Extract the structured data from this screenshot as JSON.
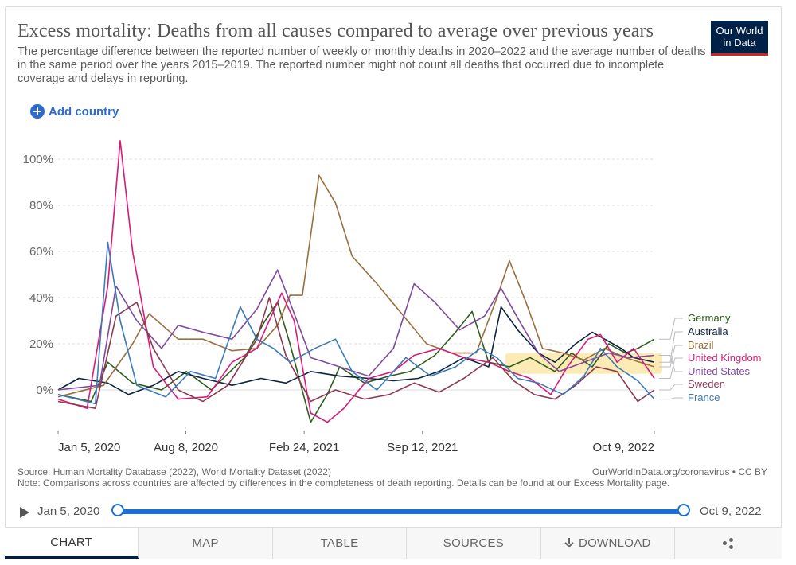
{
  "header": {
    "title": "Excess mortality: Deaths from all causes compared to average over previous years",
    "subtitle": "The percentage difference between the reported number of weekly or monthly deaths in 2020–2022 and the average number of deaths in the same period over the years 2015–2019. The reported number might not count all deaths that occurred due to incomplete coverage and delays in reporting.",
    "logo_line1": "Our World",
    "logo_line2": "in Data",
    "add_country": "Add country"
  },
  "colors": {
    "Germany": "#2f5d1e",
    "Australia": "#0c2340",
    "Brazil": "#9a6f3e",
    "United Kingdom": "#d81b78",
    "United States": "#7e4aa0",
    "Sweden": "#8b3a52",
    "France": "#3d7ab8",
    "highlight": "#fde8a8"
  },
  "chart_data": {
    "type": "line",
    "y_unit": "%",
    "ylim": [
      -15,
      110
    ],
    "y_ticks": [
      "100%",
      "80%",
      "60%",
      "40%",
      "20%",
      "0%"
    ],
    "y_tick_values": [
      100,
      80,
      60,
      40,
      20,
      0
    ],
    "x_ticks": [
      "Jan 5, 2020",
      "Aug 8, 2020",
      "Feb 24, 2021",
      "Sep 12, 2021",
      "Oct 9, 2022"
    ],
    "x_tick_dates": [
      "2020-01-05",
      "2020-08-08",
      "2021-02-24",
      "2021-09-12",
      "2022-10-09"
    ],
    "x_range": [
      "2020-01-05",
      "2022-10-09"
    ],
    "legend_position": "right",
    "grid": "horizontal",
    "series": [
      {
        "name": "Germany",
        "points": [
          [
            "2020-01-05",
            -2
          ],
          [
            "2020-03-01",
            -5
          ],
          [
            "2020-03-29",
            12
          ],
          [
            "2020-05-10",
            3
          ],
          [
            "2020-06-28",
            0
          ],
          [
            "2020-08-09",
            8
          ],
          [
            "2020-09-20",
            0
          ],
          [
            "2020-11-15",
            14
          ],
          [
            "2020-12-20",
            30
          ],
          [
            "2021-01-10",
            38
          ],
          [
            "2021-01-31",
            20
          ],
          [
            "2021-03-07",
            -14
          ],
          [
            "2021-04-04",
            -2
          ],
          [
            "2021-04-25",
            10
          ],
          [
            "2021-06-06",
            3
          ],
          [
            "2021-07-18",
            6
          ],
          [
            "2021-08-22",
            8
          ],
          [
            "2021-10-03",
            15
          ],
          [
            "2021-11-07",
            25
          ],
          [
            "2021-12-05",
            34
          ],
          [
            "2022-01-02",
            12
          ],
          [
            "2022-02-06",
            10
          ],
          [
            "2022-03-13",
            14
          ],
          [
            "2022-04-24",
            8
          ],
          [
            "2022-05-22",
            16
          ],
          [
            "2022-06-26",
            10
          ],
          [
            "2022-07-24",
            20
          ],
          [
            "2022-08-21",
            16
          ],
          [
            "2022-09-11",
            18
          ],
          [
            "2022-10-09",
            22
          ]
        ]
      },
      {
        "name": "Australia",
        "points": [
          [
            "2020-01-05",
            0
          ],
          [
            "2020-02-09",
            5
          ],
          [
            "2020-03-29",
            3
          ],
          [
            "2020-05-03",
            -2
          ],
          [
            "2020-06-14",
            2
          ],
          [
            "2020-07-26",
            8
          ],
          [
            "2020-09-06",
            5
          ],
          [
            "2020-10-25",
            2
          ],
          [
            "2020-12-13",
            5
          ],
          [
            "2021-01-24",
            3
          ],
          [
            "2021-03-07",
            8
          ],
          [
            "2021-04-25",
            6
          ],
          [
            "2021-06-13",
            5
          ],
          [
            "2021-07-25",
            4
          ],
          [
            "2021-09-05",
            5
          ],
          [
            "2021-10-10",
            8
          ],
          [
            "2021-11-21",
            14
          ],
          [
            "2022-01-02",
            10
          ],
          [
            "2022-01-23",
            36
          ],
          [
            "2022-02-20",
            26
          ],
          [
            "2022-03-27",
            16
          ],
          [
            "2022-04-24",
            12
          ],
          [
            "2022-05-29",
            20
          ],
          [
            "2022-06-26",
            25
          ],
          [
            "2022-07-17",
            22
          ],
          [
            "2022-08-14",
            18
          ],
          [
            "2022-09-04",
            14
          ],
          [
            "2022-10-09",
            12
          ]
        ]
      },
      {
        "name": "Brazil",
        "points": [
          [
            "2020-01-05",
            -3
          ],
          [
            "2020-03-22",
            2
          ],
          [
            "2020-05-10",
            20
          ],
          [
            "2020-06-07",
            33
          ],
          [
            "2020-07-26",
            22
          ],
          [
            "2020-09-06",
            22
          ],
          [
            "2020-10-25",
            17
          ],
          [
            "2020-12-06",
            18
          ],
          [
            "2021-01-10",
            28
          ],
          [
            "2021-01-31",
            41
          ],
          [
            "2021-02-21",
            41
          ],
          [
            "2021-03-21",
            93
          ],
          [
            "2021-04-18",
            81
          ],
          [
            "2021-05-16",
            58
          ],
          [
            "2021-06-27",
            46
          ],
          [
            "2021-08-08",
            33
          ],
          [
            "2021-09-19",
            20
          ],
          [
            "2021-10-31",
            16
          ],
          [
            "2021-12-12",
            16
          ],
          [
            "2022-01-16",
            40
          ],
          [
            "2022-02-06",
            56
          ],
          [
            "2022-03-06",
            38
          ],
          [
            "2022-04-03",
            18
          ],
          [
            "2022-05-08",
            16
          ],
          [
            "2022-06-12",
            13
          ],
          [
            "2022-07-17",
            18
          ],
          [
            "2022-08-21",
            14
          ],
          [
            "2022-10-09",
            10
          ]
        ]
      },
      {
        "name": "United Kingdom",
        "points": [
          [
            "2020-01-05",
            -4
          ],
          [
            "2020-02-23",
            -8
          ],
          [
            "2020-03-29",
            45
          ],
          [
            "2020-04-19",
            108
          ],
          [
            "2020-05-10",
            60
          ],
          [
            "2020-06-14",
            10
          ],
          [
            "2020-07-26",
            -4
          ],
          [
            "2020-09-13",
            -3
          ],
          [
            "2020-10-25",
            12
          ],
          [
            "2020-12-06",
            18
          ],
          [
            "2021-01-17",
            42
          ],
          [
            "2021-02-07",
            30
          ],
          [
            "2021-03-07",
            -10
          ],
          [
            "2021-04-04",
            -14
          ],
          [
            "2021-05-02",
            -8
          ],
          [
            "2021-06-13",
            5
          ],
          [
            "2021-07-25",
            8
          ],
          [
            "2021-08-29",
            15
          ],
          [
            "2021-10-10",
            18
          ],
          [
            "2021-11-21",
            14
          ],
          [
            "2022-01-02",
            12
          ],
          [
            "2022-02-06",
            8
          ],
          [
            "2022-03-13",
            5
          ],
          [
            "2022-04-17",
            -2
          ],
          [
            "2022-05-15",
            10
          ],
          [
            "2022-06-19",
            22
          ],
          [
            "2022-07-10",
            24
          ],
          [
            "2022-08-07",
            12
          ],
          [
            "2022-09-04",
            18
          ],
          [
            "2022-10-09",
            5
          ]
        ]
      },
      {
        "name": "United States",
        "points": [
          [
            "2020-01-05",
            0
          ],
          [
            "2020-03-15",
            2
          ],
          [
            "2020-04-12",
            45
          ],
          [
            "2020-05-17",
            30
          ],
          [
            "2020-06-28",
            18
          ],
          [
            "2020-07-26",
            28
          ],
          [
            "2020-09-06",
            25
          ],
          [
            "2020-10-25",
            22
          ],
          [
            "2020-12-06",
            35
          ],
          [
            "2021-01-10",
            52
          ],
          [
            "2021-01-31",
            38
          ],
          [
            "2021-03-07",
            14
          ],
          [
            "2021-04-25",
            10
          ],
          [
            "2021-06-13",
            6
          ],
          [
            "2021-07-25",
            18
          ],
          [
            "2021-08-29",
            46
          ],
          [
            "2021-10-03",
            38
          ],
          [
            "2021-11-14",
            26
          ],
          [
            "2021-12-26",
            32
          ],
          [
            "2022-01-23",
            44
          ],
          [
            "2022-02-27",
            28
          ],
          [
            "2022-03-27",
            16
          ],
          [
            "2022-05-01",
            8
          ],
          [
            "2022-06-12",
            12
          ],
          [
            "2022-07-24",
            16
          ],
          [
            "2022-08-28",
            14
          ],
          [
            "2022-10-09",
            15
          ]
        ]
      },
      {
        "name": "Sweden",
        "points": [
          [
            "2020-01-05",
            -5
          ],
          [
            "2020-03-08",
            -8
          ],
          [
            "2020-04-12",
            32
          ],
          [
            "2020-05-17",
            38
          ],
          [
            "2020-06-14",
            18
          ],
          [
            "2020-07-26",
            0
          ],
          [
            "2020-09-06",
            -5
          ],
          [
            "2020-10-18",
            2
          ],
          [
            "2020-12-06",
            22
          ],
          [
            "2020-12-27",
            40
          ],
          [
            "2021-01-24",
            15
          ],
          [
            "2021-03-07",
            -5
          ],
          [
            "2021-04-18",
            0
          ],
          [
            "2021-06-06",
            -4
          ],
          [
            "2021-07-18",
            -2
          ],
          [
            "2021-08-29",
            3
          ],
          [
            "2021-10-10",
            -1
          ],
          [
            "2021-11-21",
            5
          ],
          [
            "2022-01-09",
            14
          ],
          [
            "2022-02-13",
            4
          ],
          [
            "2022-03-20",
            -2
          ],
          [
            "2022-04-24",
            -4
          ],
          [
            "2022-05-29",
            2
          ],
          [
            "2022-07-03",
            10
          ],
          [
            "2022-08-07",
            8
          ],
          [
            "2022-09-11",
            -5
          ],
          [
            "2022-10-09",
            0
          ]
        ]
      },
      {
        "name": "France",
        "points": [
          [
            "2020-01-05",
            -2
          ],
          [
            "2020-03-08",
            -6
          ],
          [
            "2020-03-29",
            64
          ],
          [
            "2020-04-19",
            30
          ],
          [
            "2020-05-17",
            2
          ],
          [
            "2020-07-05",
            -3
          ],
          [
            "2020-08-16",
            8
          ],
          [
            "2020-09-27",
            5
          ],
          [
            "2020-11-08",
            36
          ],
          [
            "2020-12-06",
            22
          ],
          [
            "2021-01-03",
            18
          ],
          [
            "2021-01-31",
            12
          ],
          [
            "2021-03-14",
            18
          ],
          [
            "2021-04-18",
            22
          ],
          [
            "2021-05-16",
            8
          ],
          [
            "2021-06-27",
            0
          ],
          [
            "2021-08-15",
            14
          ],
          [
            "2021-09-26",
            6
          ],
          [
            "2021-11-07",
            10
          ],
          [
            "2021-12-19",
            18
          ],
          [
            "2022-01-16",
            14
          ],
          [
            "2022-02-20",
            5
          ],
          [
            "2022-03-27",
            3
          ],
          [
            "2022-05-08",
            -2
          ],
          [
            "2022-06-12",
            6
          ],
          [
            "2022-07-10",
            18
          ],
          [
            "2022-08-07",
            10
          ],
          [
            "2022-09-11",
            4
          ],
          [
            "2022-10-09",
            -4
          ]
        ]
      }
    ],
    "legend": [
      {
        "name": "Germany",
        "color": "#2f5d1e"
      },
      {
        "name": "Australia",
        "color": "#0c2340"
      },
      {
        "name": "Brazil",
        "color": "#9a6f3e"
      },
      {
        "name": "United Kingdom",
        "color": "#d81b78"
      },
      {
        "name": "United States",
        "color": "#7e4aa0"
      },
      {
        "name": "Sweden",
        "color": "#8b3a52"
      },
      {
        "name": "France",
        "color": "#3d7ab8"
      }
    ]
  },
  "footer": {
    "source": "Source: Human Mortality Database (2022), World Mortality Dataset (2022)",
    "note": "Note: Comparisons across countries are affected by differences in the completeness of death reporting. Details can be found at our Excess Mortality page.",
    "license": "OurWorldInData.org/coronavirus • CC BY"
  },
  "timeline": {
    "start": "Jan 5, 2020",
    "end": "Oct 9, 2022"
  },
  "tabs": [
    {
      "label": "CHART",
      "icon": "",
      "active": true
    },
    {
      "label": "MAP",
      "icon": "",
      "active": false
    },
    {
      "label": "TABLE",
      "icon": "",
      "active": false
    },
    {
      "label": "SOURCES",
      "icon": "",
      "active": false
    },
    {
      "label": "DOWNLOAD",
      "icon": "download-icon",
      "active": false
    },
    {
      "label": "",
      "icon": "share-icon",
      "active": false
    }
  ]
}
